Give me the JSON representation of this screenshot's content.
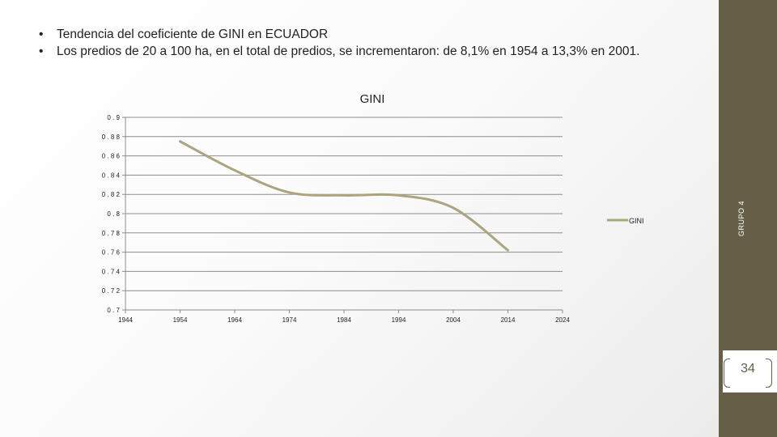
{
  "bullets": [
    "Tendencia del coeficiente de GINI en ECUADOR",
    "Los predios de 20 a 100 ha, en el total de predios, se incrementaron: de 8,1% en 1954 a 13,3% en 2001."
  ],
  "side_label": "GRUPO 4",
  "page_number": "34",
  "colors": {
    "band": "#675e48",
    "line": "#aaa57e"
  },
  "chart_data": {
    "type": "line",
    "title": "GINI",
    "xlabel": "",
    "ylabel": "",
    "x_ticks": [
      "1944",
      "1954",
      "1964",
      "1974",
      "1984",
      "1994",
      "2004",
      "2014",
      "2024"
    ],
    "y_ticks": [
      "0.9",
      "0.88",
      "0.86",
      "0.84",
      "0.82",
      "0.8",
      "0.78",
      "0.76",
      "0.74",
      "0.72",
      "0.7"
    ],
    "xlim": [
      1944,
      2024
    ],
    "ylim": [
      0.7,
      0.9
    ],
    "grid": true,
    "legend": "right",
    "series": [
      {
        "name": "GINI",
        "x": [
          1954,
          1964,
          1974,
          1984,
          1994,
          2004,
          2014
        ],
        "y": [
          0.875,
          0.845,
          0.822,
          0.819,
          0.819,
          0.806,
          0.762
        ]
      }
    ]
  }
}
